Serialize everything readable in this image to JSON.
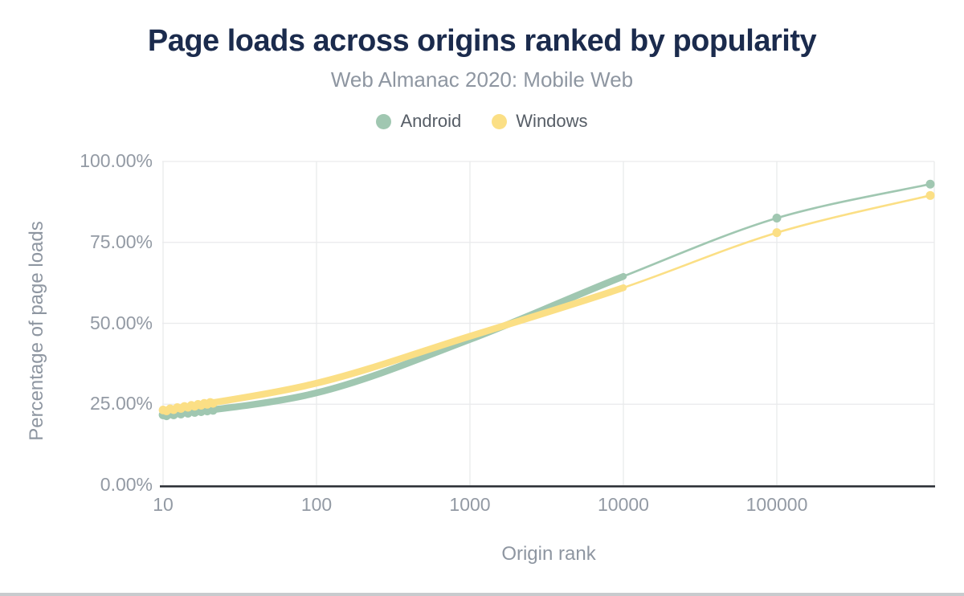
{
  "title": "Page loads across origins ranked by popularity",
  "subtitle": "Web Almanac 2020: Mobile Web",
  "legend": [
    {
      "label": "Android",
      "color": "#a0c7b1"
    },
    {
      "label": "Windows",
      "color": "#fbdf85"
    }
  ],
  "colors": {
    "title": "#1b2b4d",
    "subtitle": "#8e96a1",
    "tick_text": "#939aa4",
    "gridline": "#e9eaec",
    "axis_line": "#272a30",
    "android": "#a0c7b1",
    "windows": "#fbdf85",
    "bottom_bar": "#c8cbce"
  },
  "chart_data": {
    "type": "line",
    "title": "Page loads across origins ranked by popularity",
    "subtitle": "Web Almanac 2020: Mobile Web",
    "xlabel": "Origin rank",
    "ylabel": "Percentage of page loads",
    "x_scale": "log",
    "xlim": [
      10,
      1000000
    ],
    "ylim": [
      0,
      100
    ],
    "x_tick_values": [
      10,
      100,
      1000,
      10000,
      100000
    ],
    "x_tick_labels": [
      "10",
      "100",
      "1000",
      "10000",
      "100000"
    ],
    "y_tick_values": [
      0,
      25,
      50,
      75,
      100
    ],
    "y_tick_labels": [
      "0.00%",
      "25.00%",
      "50.00%",
      "75.00%",
      "100.00%"
    ],
    "grid": true,
    "legend_position": "top",
    "series": [
      {
        "name": "Android",
        "color": "#a0c7b1",
        "x": [
          10,
          100,
          1000,
          10000,
          100000,
          1000000
        ],
        "values": [
          21.5,
          28.5,
          45.0,
          64.5,
          82.5,
          93.0
        ],
        "dense_markers_until_x": 10000,
        "point_markers_from_x": 100000
      },
      {
        "name": "Windows",
        "color": "#fbdf85",
        "x": [
          10,
          100,
          1000,
          10000,
          100000,
          1000000
        ],
        "values": [
          23.0,
          31.5,
          46.0,
          61.0,
          78.0,
          89.5
        ],
        "dense_markers_until_x": 10000,
        "point_markers_from_x": 100000
      }
    ]
  }
}
